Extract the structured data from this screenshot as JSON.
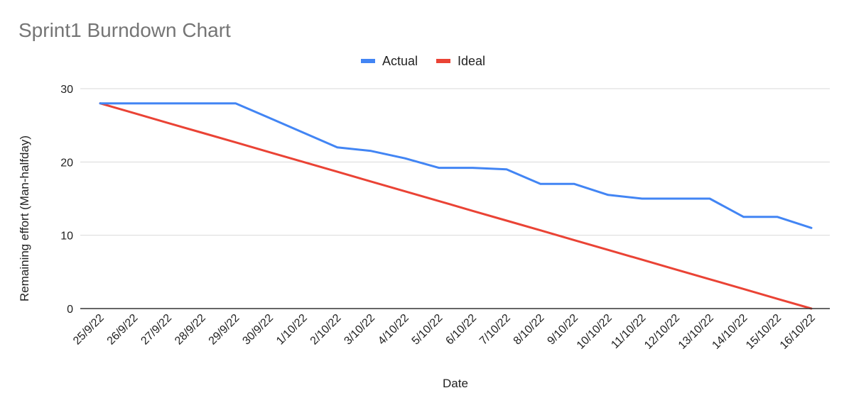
{
  "chart_data": {
    "type": "line",
    "title": "Sprint1 Burndown Chart",
    "xlabel": "Date",
    "ylabel": "Remaining effort (Man-halfday)",
    "ylim": [
      0,
      30
    ],
    "yticks": [
      0,
      10,
      20,
      30
    ],
    "grid": true,
    "legend_position": "top",
    "categories": [
      "25/9/22",
      "26/9/22",
      "27/9/22",
      "28/9/22",
      "29/9/22",
      "30/9/22",
      "1/10/22",
      "2/10/22",
      "3/10/22",
      "4/10/22",
      "5/10/22",
      "6/10/22",
      "7/10/22",
      "8/10/22",
      "9/10/22",
      "10/10/22",
      "11/10/22",
      "12/10/22",
      "13/10/22",
      "14/10/22",
      "15/10/22",
      "16/10/22"
    ],
    "series": [
      {
        "name": "Actual",
        "color": "#4285f4",
        "values": [
          28,
          28,
          28,
          28,
          28,
          26,
          24,
          22,
          21.5,
          20.5,
          19.2,
          19.2,
          19,
          17,
          17,
          15.5,
          15,
          15,
          15,
          12.5,
          12.5,
          11
        ]
      },
      {
        "name": "Ideal",
        "color": "#ea4335",
        "values": [
          28,
          26.67,
          25.33,
          24,
          22.67,
          21.33,
          20,
          18.67,
          17.33,
          16,
          14.67,
          13.33,
          12,
          10.67,
          9.33,
          8,
          6.67,
          5.33,
          4,
          2.67,
          1.33,
          0
        ]
      }
    ]
  }
}
